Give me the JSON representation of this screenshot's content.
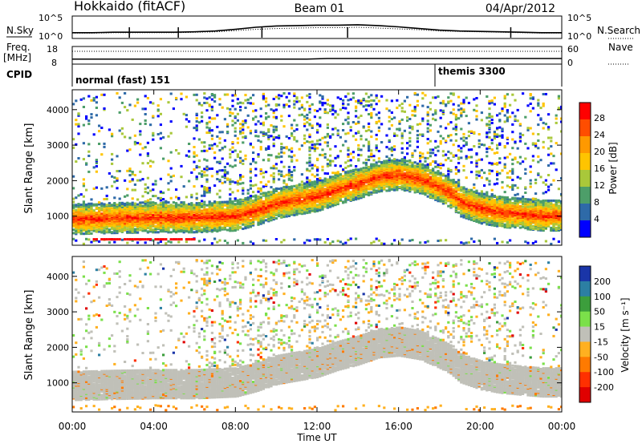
{
  "header": {
    "station": "Hokkaido (fitACF)",
    "beam": "Beam 01",
    "date": "04/Apr/2012"
  },
  "chart_data": [
    {
      "type": "line",
      "panel": "noise",
      "left_label": "N.Sky",
      "right_label": "N.Search",
      "left_ticks": [
        "10^5",
        "10^0"
      ],
      "right_ticks": [
        "10^5",
        "10^0"
      ],
      "x": [
        0,
        1,
        2,
        3,
        4,
        5,
        6,
        7,
        8,
        9,
        10,
        11,
        12,
        13,
        14,
        15,
        16,
        17,
        18,
        19,
        20,
        21,
        22,
        23,
        24
      ],
      "series": [
        {
          "name": "N.Sky",
          "values": [
            1.2,
            1.2,
            1.3,
            1.3,
            1.3,
            1.3,
            1.4,
            1.6,
            2.0,
            2.5,
            2.8,
            2.9,
            3.0,
            3.0,
            3.1,
            2.9,
            2.6,
            2.2,
            1.8,
            1.6,
            1.5,
            1.4,
            1.3,
            1.2,
            1.2
          ]
        },
        {
          "name": "N.Search",
          "values": [
            1.1,
            1.1,
            1.2,
            1.2,
            1.2,
            1.2,
            1.3,
            1.4,
            1.7,
            2.0,
            2.2,
            2.3,
            2.4,
            2.4,
            2.5,
            2.3,
            2.1,
            1.9,
            1.6,
            1.5,
            1.4,
            1.3,
            1.2,
            1.1,
            1.1
          ]
        }
      ],
      "spikes_h": [
        2.8,
        5.2,
        9.3,
        13.5,
        21.5
      ]
    },
    {
      "type": "line",
      "panel": "frequency",
      "left_label_top": "Freq.",
      "left_label_units": "[MHz]",
      "right_label": "Nave",
      "left_ticks": [
        "18",
        "8"
      ],
      "right_ticks": [
        "60",
        "0"
      ],
      "x": [
        0,
        4,
        8,
        11.5,
        12.5,
        16,
        20,
        24
      ],
      "series": [
        {
          "name": "Freq.",
          "values": [
            10.6,
            10.6,
            10.6,
            10.6,
            11.0,
            11.0,
            11.0,
            11.0
          ]
        },
        {
          "name": "Nave",
          "values": [
            45,
            45,
            45,
            45,
            45,
            45,
            45,
            45
          ]
        }
      ]
    },
    {
      "type": "table",
      "panel": "cpid",
      "left_label": "CPID",
      "segments": [
        {
          "label": "normal (fast) 151",
          "start": 0,
          "end": 18
        },
        {
          "label": "themis 3300",
          "start": 18,
          "end": 24
        }
      ]
    },
    {
      "type": "heatmap",
      "panel": "power",
      "ylabel": "Slant Range [km]",
      "yticks": [
        "1000",
        "2000",
        "3000",
        "4000"
      ],
      "ylim": [
        180,
        4560
      ],
      "colorbar_label": "Power [dB]",
      "colorbar_ticks": [
        "28",
        "24",
        "20",
        "16",
        "12",
        "8",
        "4"
      ],
      "colorbar_colors": [
        "#ff0000",
        "#ff4d00",
        "#ff9900",
        "#ffc400",
        "#a9c83a",
        "#4d9e69",
        "#2e6aa8",
        "#0000ff"
      ],
      "echo_band_center_km": [
        [
          0,
          950
        ],
        [
          2,
          980
        ],
        [
          4,
          1000
        ],
        [
          6,
          1000
        ],
        [
          8,
          1050
        ],
        [
          9,
          1200
        ],
        [
          10,
          1400
        ],
        [
          11,
          1500
        ],
        [
          12,
          1600
        ],
        [
          13,
          1800
        ],
        [
          14,
          1950
        ],
        [
          15,
          2150
        ],
        [
          16,
          2200
        ],
        [
          17,
          2100
        ],
        [
          18,
          1850
        ],
        [
          18.5,
          1700
        ],
        [
          19,
          1450
        ],
        [
          20,
          1250
        ],
        [
          21,
          1150
        ],
        [
          22,
          1100
        ],
        [
          23,
          1050
        ],
        [
          24,
          1050
        ]
      ]
    },
    {
      "type": "heatmap",
      "panel": "velocity",
      "ylabel": "Slant Range [km]",
      "yticks": [
        "1000",
        "2000",
        "3000",
        "4000"
      ],
      "ylim": [
        180,
        4560
      ],
      "colorbar_label": "Velocity [m s⁻¹]",
      "colorbar_ticks": [
        "200",
        "100",
        "50",
        "15",
        "-15",
        "-50",
        "-100",
        "-200"
      ],
      "colorbar_colors": [
        "#1a35a8",
        "#2c7fa3",
        "#3c9e3c",
        "#7be04a",
        "#c0c0b8",
        "#ffb020",
        "#ff7a00",
        "#ff3000",
        "#e00000"
      ]
    }
  ],
  "xaxis": {
    "label": "Time UT",
    "ticks": [
      "00:00",
      "04:00",
      "08:00",
      "12:00",
      "16:00",
      "20:00",
      "00:00"
    ]
  }
}
